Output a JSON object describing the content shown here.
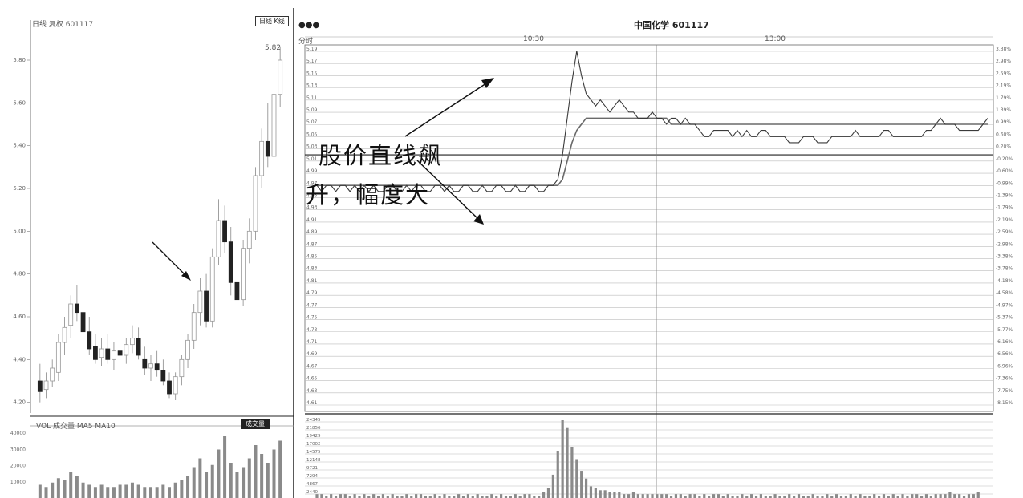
{
  "window": {
    "title": "中国化学 601117",
    "left_header_text": "日线 复权 601117",
    "left_toolbar_label": "日线 K线",
    "right_panel_label": "分时",
    "left_lower_toolbar_text": "VOL 成交量 MA5 MA10",
    "left_lower_button": "成交量",
    "time_labels": [
      "10:30",
      "13:00"
    ],
    "last_price_label": "5.82"
  },
  "colors": {
    "price_line": "#3a3a3a",
    "avg_line": "#6a6a6a",
    "grid": "#bdbdbd",
    "candle": "#222222",
    "volume": "#8a8a8a",
    "annotation": "#111111"
  },
  "chart_data": [
    {
      "type": "candlestick",
      "title": "",
      "description_source": "daily K-line (left pane)",
      "y_ticks": [
        "5.80",
        "5.60",
        "5.40",
        "5.20",
        "5.00",
        "4.80",
        "4.60",
        "4.40",
        "4.20"
      ],
      "ylim": [
        4.15,
        5.95
      ],
      "candles": [
        {
          "o": 4.3,
          "h": 4.38,
          "l": 4.2,
          "c": 4.25
        },
        {
          "o": 4.26,
          "h": 4.34,
          "l": 4.22,
          "c": 4.3
        },
        {
          "o": 4.3,
          "h": 4.4,
          "l": 4.27,
          "c": 4.36
        },
        {
          "o": 4.34,
          "h": 4.52,
          "l": 4.3,
          "c": 4.48
        },
        {
          "o": 4.48,
          "h": 4.6,
          "l": 4.42,
          "c": 4.55
        },
        {
          "o": 4.56,
          "h": 4.7,
          "l": 4.5,
          "c": 4.66
        },
        {
          "o": 4.66,
          "h": 4.75,
          "l": 4.58,
          "c": 4.62
        },
        {
          "o": 4.62,
          "h": 4.7,
          "l": 4.5,
          "c": 4.53
        },
        {
          "o": 4.53,
          "h": 4.6,
          "l": 4.42,
          "c": 4.45
        },
        {
          "o": 4.46,
          "h": 4.52,
          "l": 4.38,
          "c": 4.4
        },
        {
          "o": 4.41,
          "h": 4.5,
          "l": 4.37,
          "c": 4.45
        },
        {
          "o": 4.45,
          "h": 4.52,
          "l": 4.38,
          "c": 4.4
        },
        {
          "o": 4.4,
          "h": 4.48,
          "l": 4.35,
          "c": 4.44
        },
        {
          "o": 4.44,
          "h": 4.5,
          "l": 4.39,
          "c": 4.42
        },
        {
          "o": 4.42,
          "h": 4.5,
          "l": 4.38,
          "c": 4.47
        },
        {
          "o": 4.47,
          "h": 4.56,
          "l": 4.43,
          "c": 4.5
        },
        {
          "o": 4.5,
          "h": 4.55,
          "l": 4.4,
          "c": 4.42
        },
        {
          "o": 4.4,
          "h": 4.46,
          "l": 4.33,
          "c": 4.36
        },
        {
          "o": 4.36,
          "h": 4.42,
          "l": 4.3,
          "c": 4.38
        },
        {
          "o": 4.38,
          "h": 4.44,
          "l": 4.32,
          "c": 4.35
        },
        {
          "o": 4.35,
          "h": 4.4,
          "l": 4.28,
          "c": 4.3
        },
        {
          "o": 4.3,
          "h": 4.34,
          "l": 4.22,
          "c": 4.24
        },
        {
          "o": 4.24,
          "h": 4.34,
          "l": 4.21,
          "c": 4.32
        },
        {
          "o": 4.32,
          "h": 4.42,
          "l": 4.28,
          "c": 4.4
        },
        {
          "o": 4.4,
          "h": 4.52,
          "l": 4.36,
          "c": 4.49
        },
        {
          "o": 4.49,
          "h": 4.66,
          "l": 4.45,
          "c": 4.62
        },
        {
          "o": 4.62,
          "h": 4.78,
          "l": 4.56,
          "c": 4.72
        },
        {
          "o": 4.72,
          "h": 4.8,
          "l": 4.55,
          "c": 4.58
        },
        {
          "o": 4.58,
          "h": 4.92,
          "l": 4.55,
          "c": 4.88
        },
        {
          "o": 4.88,
          "h": 5.15,
          "l": 4.84,
          "c": 5.05
        },
        {
          "o": 5.05,
          "h": 5.12,
          "l": 4.9,
          "c": 4.95
        },
        {
          "o": 4.95,
          "h": 5.02,
          "l": 4.7,
          "c": 4.76
        },
        {
          "o": 4.76,
          "h": 4.85,
          "l": 4.62,
          "c": 4.68
        },
        {
          "o": 4.68,
          "h": 4.96,
          "l": 4.65,
          "c": 4.92
        },
        {
          "o": 4.92,
          "h": 5.06,
          "l": 4.85,
          "c": 5.0
        },
        {
          "o": 5.0,
          "h": 5.3,
          "l": 4.96,
          "c": 5.26
        },
        {
          "o": 5.26,
          "h": 5.48,
          "l": 5.2,
          "c": 5.42
        },
        {
          "o": 5.42,
          "h": 5.6,
          "l": 5.3,
          "c": 5.35
        },
        {
          "o": 5.35,
          "h": 5.7,
          "l": 5.32,
          "c": 5.64
        },
        {
          "o": 5.64,
          "h": 5.86,
          "l": 5.58,
          "c": 5.8
        }
      ]
    },
    {
      "type": "bar",
      "title": "",
      "description_source": "daily volume (left lower pane)",
      "y_ticks": [
        "40000",
        "30000",
        "20000",
        "10000"
      ],
      "values": [
        6,
        5,
        7,
        9,
        8,
        12,
        10,
        7,
        6,
        5,
        6,
        5,
        5,
        6,
        6,
        7,
        6,
        5,
        5,
        5,
        6,
        5,
        7,
        8,
        10,
        14,
        18,
        12,
        15,
        22,
        28,
        16,
        12,
        14,
        18,
        24,
        20,
        16,
        22,
        26
      ]
    },
    {
      "type": "line",
      "title": "中国化学 601117",
      "description_source": "intraday time-share chart (right pane)",
      "y_ticks_left": [
        "5.19",
        "5.17",
        "5.15",
        "5.13",
        "5.11",
        "5.09",
        "5.07",
        "5.05",
        "5.03",
        "5.01",
        "4.99",
        "4.97",
        "4.95",
        "4.93",
        "4.91",
        "4.89",
        "4.87",
        "4.85",
        "4.83",
        "4.81",
        "4.79",
        "4.77",
        "4.75",
        "4.73",
        "4.71",
        "4.69",
        "4.67",
        "4.65",
        "4.63",
        "4.61"
      ],
      "y_ticks_right": [
        "3.38%",
        "2.98%",
        "2.59%",
        "2.19%",
        "1.79%",
        "1.39%",
        "0.99%",
        "0.60%",
        "0.20%",
        "-0.20%",
        "-0.60%",
        "-0.99%",
        "-1.39%",
        "-1.79%",
        "-2.19%",
        "-2.59%",
        "-2.98%",
        "-3.38%",
        "-3.78%",
        "-4.18%",
        "-4.58%",
        "-4.97%",
        "-5.37%",
        "-5.77%",
        "-6.16%",
        "-6.56%",
        "-6.96%",
        "-7.36%",
        "-7.75%",
        "-8.15%"
      ],
      "ylim": [
        4.6,
        5.2
      ],
      "baseline": 5.02,
      "series": [
        {
          "name": "",
          "values": [
            4.97,
            4.96,
            4.97,
            4.97,
            4.96,
            4.97,
            4.97,
            4.96,
            4.97,
            4.96,
            4.97,
            4.96,
            4.97,
            4.96,
            4.96,
            4.97,
            4.97,
            4.96,
            4.96,
            4.97,
            4.96,
            4.97,
            4.97,
            4.96,
            4.96,
            4.97,
            4.97,
            4.96,
            4.97,
            4.96,
            4.96,
            4.97,
            4.97,
            4.96,
            4.96,
            4.97,
            4.96,
            4.96,
            4.97,
            4.97,
            4.96,
            4.96,
            4.97,
            4.96,
            4.96,
            4.97,
            4.97,
            4.96,
            4.96,
            4.97,
            4.97,
            4.98,
            5.02,
            5.08,
            5.14,
            5.19,
            5.15,
            5.12,
            5.11,
            5.1,
            5.11,
            5.1,
            5.09,
            5.1,
            5.11,
            5.1,
            5.09,
            5.09,
            5.08,
            5.08,
            5.08,
            5.09,
            5.08,
            5.08,
            5.07,
            5.08,
            5.08,
            5.07,
            5.08,
            5.07,
            5.07,
            5.06,
            5.05,
            5.05,
            5.06,
            5.06,
            5.06,
            5.06,
            5.05,
            5.06,
            5.05,
            5.06,
            5.05,
            5.05,
            5.06,
            5.06,
            5.05,
            5.05,
            5.05,
            5.05,
            5.04,
            5.04,
            5.04,
            5.05,
            5.05,
            5.05,
            5.04,
            5.04,
            5.04,
            5.05,
            5.05,
            5.05,
            5.05,
            5.05,
            5.06,
            5.05,
            5.05,
            5.05,
            5.05,
            5.05,
            5.06,
            5.06,
            5.05,
            5.05,
            5.05,
            5.05,
            5.05,
            5.05,
            5.05,
            5.06,
            5.06,
            5.07,
            5.08,
            5.07,
            5.07,
            5.07,
            5.06,
            5.06,
            5.06,
            5.06,
            5.06,
            5.07,
            5.08
          ]
        },
        {
          "name": "",
          "values": [
            4.97,
            4.97,
            4.97,
            4.97,
            4.97,
            4.97,
            4.97,
            4.97,
            4.97,
            4.97,
            4.97,
            4.97,
            4.97,
            4.97,
            4.97,
            4.97,
            4.97,
            4.97,
            4.97,
            4.97,
            4.97,
            4.97,
            4.97,
            4.97,
            4.97,
            4.97,
            4.97,
            4.97,
            4.97,
            4.97,
            4.97,
            4.97,
            4.97,
            4.97,
            4.97,
            4.97,
            4.97,
            4.97,
            4.97,
            4.97,
            4.97,
            4.97,
            4.97,
            4.97,
            4.97,
            4.97,
            4.97,
            4.97,
            4.97,
            4.97,
            4.97,
            4.97,
            4.98,
            5.01,
            5.04,
            5.06,
            5.07,
            5.08,
            5.08,
            5.08,
            5.08,
            5.08,
            5.08,
            5.08,
            5.08,
            5.08,
            5.08,
            5.08,
            5.08,
            5.08,
            5.08,
            5.08,
            5.08,
            5.08,
            5.08,
            5.07,
            5.07,
            5.07,
            5.07,
            5.07,
            5.07,
            5.07,
            5.07,
            5.07,
            5.07,
            5.07,
            5.07,
            5.07,
            5.07,
            5.07,
            5.07,
            5.07,
            5.07,
            5.07,
            5.07,
            5.07,
            5.07,
            5.07,
            5.07,
            5.07,
            5.07,
            5.07,
            5.07,
            5.07,
            5.07,
            5.07,
            5.07,
            5.07,
            5.07,
            5.07,
            5.07,
            5.07,
            5.07,
            5.07,
            5.07,
            5.07,
            5.07,
            5.07,
            5.07,
            5.07,
            5.07,
            5.07,
            5.07,
            5.07,
            5.07,
            5.07,
            5.07,
            5.07,
            5.07,
            5.07,
            5.07,
            5.07,
            5.07,
            5.07,
            5.07,
            5.07,
            5.07,
            5.07,
            5.07,
            5.07,
            5.07,
            5.07,
            5.07
          ]
        }
      ],
      "volume": [
        2,
        2,
        1,
        2,
        1,
        2,
        2,
        1,
        2,
        1,
        2,
        1,
        2,
        1,
        2,
        1,
        2,
        1,
        1,
        2,
        1,
        2,
        2,
        1,
        1,
        2,
        1,
        2,
        1,
        1,
        2,
        1,
        2,
        1,
        2,
        1,
        1,
        2,
        1,
        2,
        1,
        1,
        2,
        1,
        2,
        2,
        1,
        1,
        3,
        5,
        12,
        24,
        40,
        36,
        26,
        20,
        14,
        10,
        6,
        5,
        4,
        4,
        3,
        3,
        3,
        2,
        2,
        3,
        2,
        2,
        2,
        2,
        2,
        2,
        2,
        1,
        2,
        2,
        1,
        2,
        2,
        1,
        2,
        1,
        2,
        2,
        1,
        2,
        1,
        1,
        2,
        1,
        2,
        1,
        2,
        1,
        1,
        2,
        1,
        1,
        2,
        1,
        2,
        1,
        1,
        2,
        1,
        1,
        2,
        1,
        2,
        1,
        1,
        2,
        1,
        2,
        1,
        1,
        2,
        1,
        2,
        1,
        2,
        1,
        2,
        1,
        2,
        2,
        1,
        2,
        1,
        2,
        2,
        2,
        3,
        2,
        2,
        1,
        2,
        2,
        3
      ],
      "volume_ticks": [
        "24345",
        "21856",
        "19429",
        "17002",
        "14575",
        "12148",
        "9721",
        "7294",
        "4867",
        "2440"
      ],
      "annotation": {
        "line1": "股价直线飙",
        "line2": "升，幅度大"
      }
    }
  ]
}
